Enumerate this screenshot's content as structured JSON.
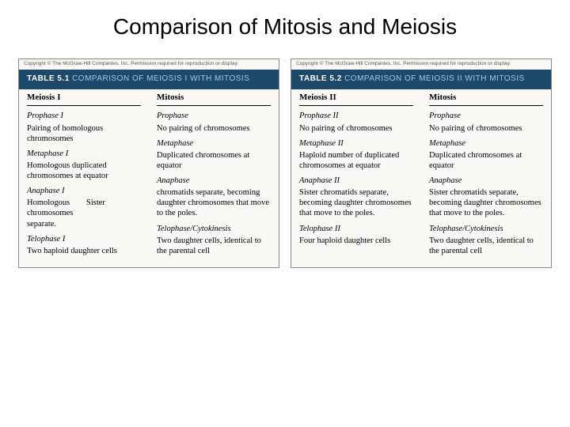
{
  "title": "Comparison of Mitosis and Meiosis",
  "copyright": "Copyright © The McGraw-Hill Companies, Inc. Permission required for reproduction or display.",
  "table1": {
    "num": "TABLE 5.1",
    "caption": "COMPARISON OF MEIOSIS I WITH MITOSIS",
    "colA": {
      "head": "Meiosis I",
      "r1p": "Prophase I",
      "r1d": "Pairing of homologous chromosomes",
      "r2p": "Metaphase I",
      "r2d": "Homologous duplicated chromosomes at equator",
      "r3p": "Anaphase I",
      "r3dL": "Homologous chromosomes separate.",
      "r3dR": "Sister",
      "r4p": "Telophase I",
      "r4d": "Two haploid daughter cells"
    },
    "colB": {
      "head": "Mitosis",
      "r1p": "Prophase",
      "r1d": "No pairing of chromosomes",
      "r2p": "Metaphase",
      "r2d": "Duplicated chromosomes at equator",
      "r3p": "Anaphase",
      "r3d": "chromatids separate, becoming daughter chromosomes that move to the poles.",
      "r4p": "Telophase/Cytokinesis",
      "r4d": "Two daughter cells, identical to the parental cell"
    }
  },
  "table2": {
    "num": "TABLE 5.2",
    "caption": "COMPARISON OF MEIOSIS II WITH MITOSIS",
    "colA": {
      "head": "Meiosis II",
      "r1p": "Prophase II",
      "r1d": "No pairing of chromosomes",
      "r2p": "Metaphase II",
      "r2d": "Haploid number of duplicated chromosomes at equator",
      "r3p": "Anaphase II",
      "r3d": "Sister chromatids separate, becoming daughter chromosomes that move to the poles.",
      "r4p": "Telophase II",
      "r4d": "Four haploid daughter cells"
    },
    "colB": {
      "head": "Mitosis",
      "r1p": "Prophase",
      "r1d": "No pairing of chromosomes",
      "r2p": "Metaphase",
      "r2d": "Duplicated chromosomes at equator",
      "r3p": "Anaphase",
      "r3d": "Sister chromatids separate, becoming daughter chromosomes that move to the poles.",
      "r4p": "Telophase/Cytokinesis",
      "r4d": "Two daughter cells, identical to the parental cell"
    }
  }
}
